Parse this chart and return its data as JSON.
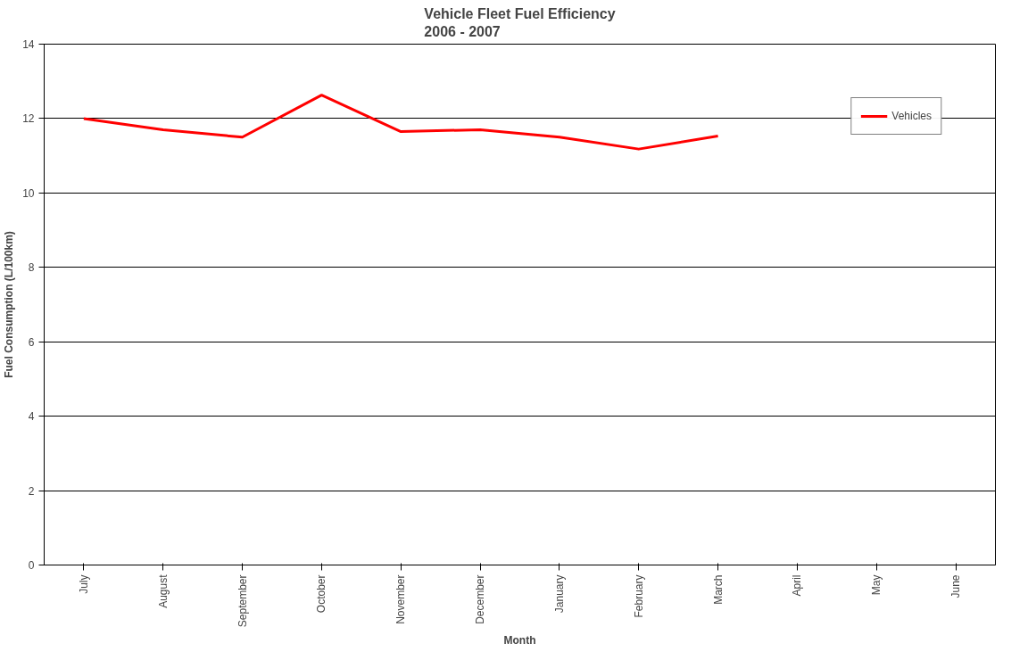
{
  "chart_data": {
    "type": "line",
    "title": "Vehicle Fleet Fuel Efficiency\n2006 - 2007",
    "xlabel": "Month",
    "ylabel": "Fuel Consumption (L/100km)",
    "categories": [
      "July",
      "August",
      "September",
      "October",
      "November",
      "December",
      "January",
      "February",
      "March",
      "April",
      "May",
      "June"
    ],
    "series": [
      {
        "name": "Vehicles",
        "color": "#ff0000",
        "values": [
          12.0,
          11.7,
          11.5,
          12.63,
          11.65,
          11.7,
          11.5,
          11.18,
          11.53,
          null,
          null,
          null
        ]
      }
    ],
    "ylim": [
      0,
      14
    ],
    "yticks": [
      0,
      2,
      4,
      6,
      8,
      10,
      12,
      14
    ],
    "grid": "y",
    "legend": "top right",
    "marker": "none",
    "line_style": "solid"
  }
}
